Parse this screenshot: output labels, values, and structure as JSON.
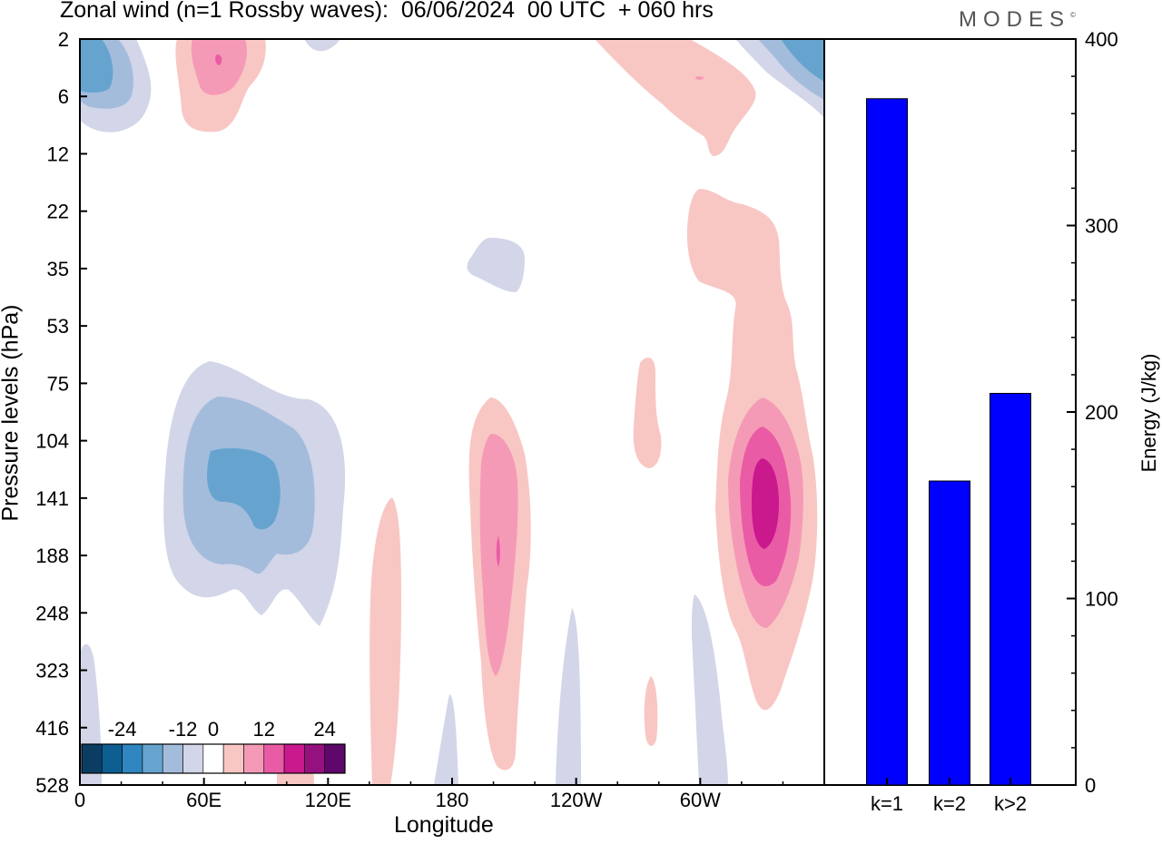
{
  "title": "Zonal wind (n=1 Rossby waves):  06/06/2024  00 UTC  + 060 hrs",
  "brand": "MODES",
  "brand_mark": "©",
  "chart_data": [
    {
      "type": "heatmap",
      "title": "Zonal wind (n=1 Rossby waves):  06/06/2024  00 UTC  + 060 hrs",
      "xlabel": "Longitude",
      "ylabel": "Pressure levels (hPa)",
      "x_ticks": [
        "0",
        "60E",
        "120E",
        "180",
        "120W",
        "60W"
      ],
      "x_tick_values": [
        0,
        60,
        120,
        180,
        240,
        300
      ],
      "xlim": [
        0,
        360
      ],
      "y_ticks": [
        "2",
        "6",
        "12",
        "22",
        "35",
        "53",
        "75",
        "104",
        "141",
        "188",
        "248",
        "323",
        "416",
        "528"
      ],
      "y_scale": "pressure levels, top to bottom",
      "colorbar": {
        "tick_labels": [
          "-24",
          "-12",
          "0",
          "12",
          "24"
        ],
        "tick_values": [
          -24,
          -12,
          0,
          12,
          24
        ],
        "levels": [
          -28,
          -24,
          -20,
          -16,
          -12,
          -8,
          -4,
          4,
          8,
          12,
          16,
          20,
          24,
          28
        ],
        "colors": [
          "#0b3d63",
          "#0d5f92",
          "#2f86c0",
          "#66a4cf",
          "#a4bcdc",
          "#d3d5e8",
          "#ffffff",
          "#f8c7c4",
          "#f59ab6",
          "#ea5ba5",
          "#c9198c",
          "#961180",
          "#5d086a"
        ]
      },
      "features": [
        {
          "sign": "negative",
          "lon": 70,
          "level": "141",
          "peak": -16
        },
        {
          "sign": "negative",
          "lon": 10,
          "level": "2",
          "peak": -16
        },
        {
          "sign": "positive",
          "lon": 67,
          "level": "2",
          "peak": 16
        },
        {
          "sign": "positive",
          "lon": 202,
          "level": "141",
          "peak": 16
        },
        {
          "sign": "positive",
          "lon": 333,
          "level": "141",
          "peak": 20
        },
        {
          "sign": "negative",
          "lon": 192,
          "level": "35",
          "peak": -4
        },
        {
          "sign": "positive",
          "lon": 145,
          "level": "248",
          "peak": 4
        }
      ]
    },
    {
      "type": "bar",
      "ylabel": "Energy (J/kg)",
      "categories": [
        "k=1",
        "k=2",
        "k>2"
      ],
      "values": [
        368,
        163,
        210
      ],
      "ylim": [
        0,
        400
      ],
      "y_ticks": [
        0,
        100,
        200,
        300,
        400
      ],
      "bar_color": "#0000ff"
    }
  ]
}
